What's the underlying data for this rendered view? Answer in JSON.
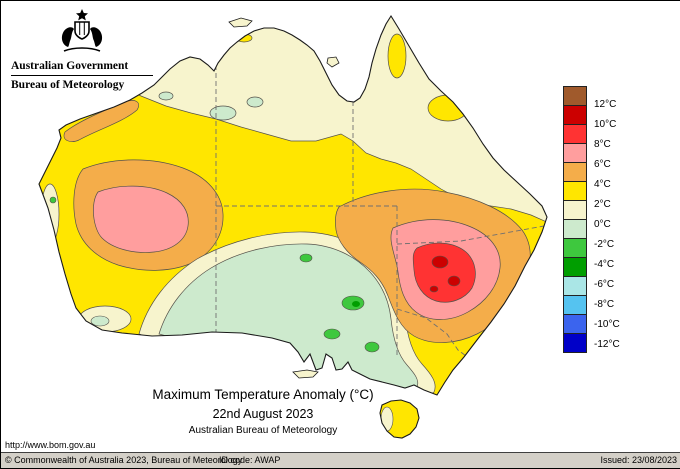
{
  "header": {
    "gov": "Australian Government",
    "bureau": "Bureau of Meteorology"
  },
  "titles": {
    "main": "Maximum Temperature Anomaly (°C)",
    "date": "22nd August 2023",
    "org": "Australian Bureau of Meteorology",
    "url": "http://www.bom.gov.au"
  },
  "legend": {
    "labels": [
      "12°C",
      "10°C",
      "8°C",
      "6°C",
      "4°C",
      "2°C",
      "0°C",
      "-2°C",
      "-4°C",
      "-6°C",
      "-8°C",
      "-10°C",
      "-12°C"
    ],
    "colors": [
      "#a05a2c",
      "#cc0000",
      "#ff3333",
      "#ff9e9e",
      "#f4ad4a",
      "#ffe600",
      "#f7f4cd",
      "#cdeacd",
      "#3ec83e",
      "#009e00",
      "#aae6e6",
      "#55c3f0",
      "#3b64ee",
      "#0000c8"
    ]
  },
  "footer": {
    "copyright": "© Commonwealth of Australia 2023, Bureau of Meteorology",
    "id_code": "ID code: AWAP",
    "issued": "Issued: 23/08/2023"
  }
}
